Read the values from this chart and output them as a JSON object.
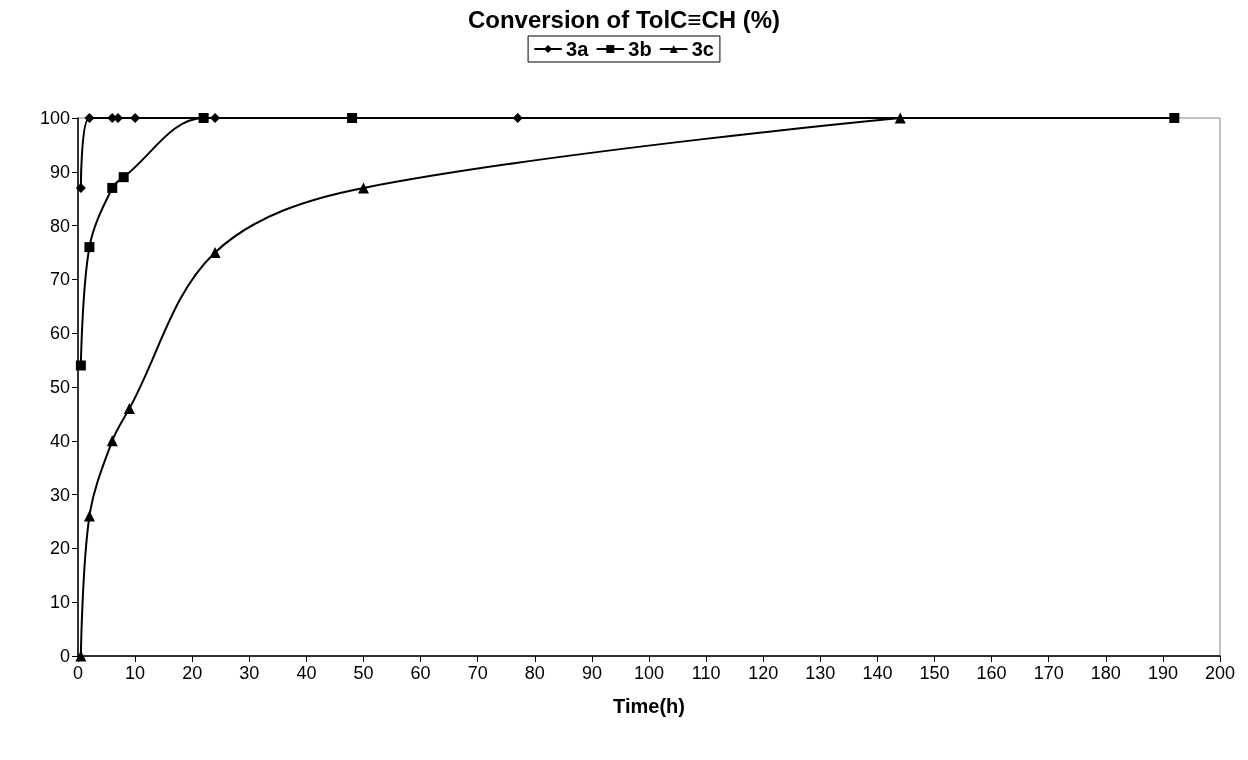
{
  "chart_data": {
    "type": "line",
    "title": "Conversion of TolC≡CH (%)",
    "xlabel": "Time(h)",
    "xlim": [
      0,
      200
    ],
    "xticks": [
      0,
      10,
      20,
      30,
      40,
      50,
      60,
      70,
      80,
      90,
      100,
      110,
      120,
      130,
      140,
      150,
      160,
      170,
      180,
      190,
      200
    ],
    "ylim": [
      0,
      100
    ],
    "yticks": [
      0,
      10,
      20,
      30,
      40,
      50,
      60,
      70,
      80,
      90,
      100
    ],
    "grid": false,
    "legend": "top",
    "line_style": "solid",
    "series": [
      {
        "name": "3a",
        "color": "#000000",
        "marker": "diamond",
        "x": [
          0.5,
          2,
          6,
          7,
          10,
          24,
          77
        ],
        "values": [
          87,
          100,
          100,
          100,
          100,
          100,
          100
        ]
      },
      {
        "name": "3b",
        "color": "#000000",
        "marker": "square",
        "x": [
          0.5,
          2,
          6,
          8,
          22,
          48,
          192
        ],
        "values": [
          54,
          76,
          87,
          89,
          100,
          100,
          100
        ]
      },
      {
        "name": "3c",
        "color": "#000000",
        "marker": "triangle",
        "x": [
          0.5,
          2,
          6,
          9,
          24,
          50,
          144
        ],
        "values": [
          0,
          26,
          40,
          46,
          75,
          87,
          100
        ]
      }
    ]
  }
}
